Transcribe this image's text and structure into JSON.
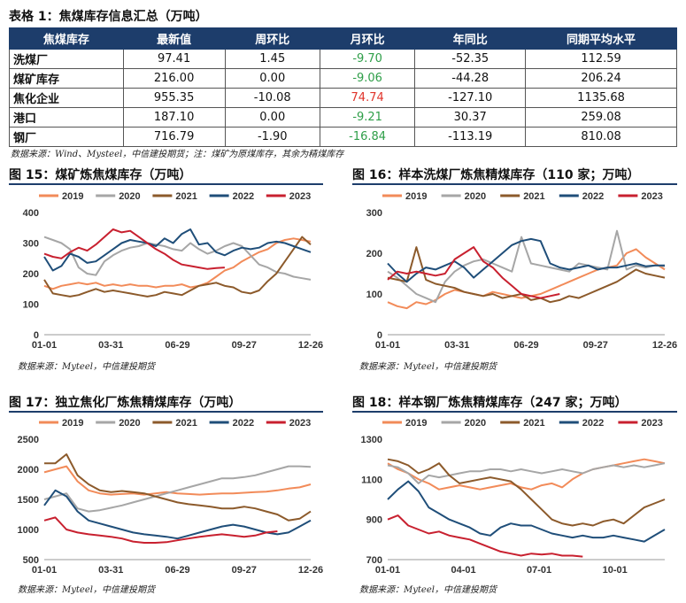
{
  "table": {
    "title": "表格 1：焦煤库存信息汇总（万吨）",
    "headers": [
      "焦煤库存",
      "最新值",
      "周环比",
      "月环比",
      "年同比",
      "同期平均水平"
    ],
    "rows": [
      [
        "洗煤厂",
        "97.41",
        "1.45",
        "-9.70",
        "-52.35",
        "112.59"
      ],
      [
        "煤矿库存",
        "216.00",
        "0.00",
        "-9.06",
        "-44.28",
        "206.24"
      ],
      [
        "焦化企业",
        "955.35",
        "-10.08",
        "74.74",
        "-127.10",
        "1135.68"
      ],
      [
        "港口",
        "187.10",
        "0.00",
        "-9.21",
        "30.37",
        "259.08"
      ],
      [
        "钢厂",
        "716.79",
        "-1.90",
        "-16.84",
        "-113.19",
        "810.08"
      ]
    ],
    "mom_colors": [
      "#2e9e48",
      "#2e9e48",
      "#e0342b",
      "#2e9e48",
      "#2e9e48"
    ],
    "source": "数据来源：Wind、Mysteel，中信建投期货；注：煤矿为原煤库存，其余为精煤库存"
  },
  "chart_source": "数据来源：Myteel，中信建投期货",
  "series_colors": {
    "2019": "#f28b59",
    "2020": "#a6a6a6",
    "2021": "#8c5a2b",
    "2022": "#1f4e79",
    "2023": "#c8202f"
  },
  "chart_data": [
    {
      "type": "line",
      "title": "图 15：煤矿炼焦煤库存（万吨）",
      "legend": [
        "2019",
        "2020",
        "2021",
        "2022",
        "2023"
      ],
      "legend_placement": "top",
      "xticks": [
        "01-01",
        "03-31",
        "06-29",
        "09-27",
        "12-26"
      ],
      "ylim": [
        0,
        400
      ],
      "yticks": [
        0,
        100,
        200,
        300,
        400
      ],
      "series": [
        {
          "name": "2019",
          "values": [
            160,
            150,
            160,
            165,
            170,
            165,
            170,
            160,
            165,
            160,
            165,
            160,
            160,
            155,
            160,
            160,
            165,
            155,
            160,
            170,
            190,
            210,
            220,
            240,
            255,
            270,
            280,
            300,
            310,
            315,
            310,
            305
          ]
        },
        {
          "name": "2020",
          "values": [
            320,
            310,
            300,
            280,
            220,
            200,
            195,
            240,
            260,
            275,
            285,
            290,
            300,
            295,
            290,
            280,
            275,
            300,
            280,
            265,
            275,
            290,
            300,
            290,
            260,
            230,
            220,
            205,
            200,
            190,
            185,
            180
          ]
        },
        {
          "name": "2021",
          "values": [
            180,
            135,
            130,
            125,
            130,
            140,
            150,
            140,
            145,
            140,
            135,
            130,
            125,
            130,
            140,
            135,
            130,
            145,
            160,
            165,
            170,
            160,
            155,
            140,
            135,
            145,
            175,
            200,
            240,
            280,
            320,
            295
          ]
        },
        {
          "name": "2022",
          "values": [
            255,
            210,
            225,
            265,
            255,
            235,
            240,
            260,
            280,
            300,
            310,
            305,
            300,
            290,
            315,
            300,
            330,
            345,
            295,
            300,
            270,
            260,
            275,
            285,
            280,
            285,
            300,
            305,
            300,
            290,
            280,
            270
          ]
        },
        {
          "name": "2023",
          "values": [
            265,
            255,
            250,
            270,
            285,
            275,
            295,
            320,
            345,
            335,
            340,
            320,
            300,
            280,
            265,
            245,
            230,
            225,
            220,
            215,
            218,
            220
          ]
        }
      ]
    },
    {
      "type": "line",
      "title": "图 16：样本洗煤厂炼焦精煤库存（110 家；万吨）",
      "legend": [
        "2019",
        "2020",
        "2021",
        "2022",
        "2023"
      ],
      "legend_placement": "top",
      "xticks": [
        "01-01",
        "03-31",
        "06-29",
        "09-27",
        "12-26"
      ],
      "ylim": [
        0,
        300
      ],
      "yticks": [
        0,
        100,
        200,
        300
      ],
      "series": [
        {
          "name": "2019",
          "values": [
            80,
            70,
            65,
            80,
            75,
            85,
            100,
            110,
            105,
            100,
            95,
            105,
            100,
            95,
            90,
            95,
            100,
            110,
            120,
            130,
            140,
            150,
            160,
            165,
            170,
            200,
            210,
            190,
            175,
            160
          ]
        },
        {
          "name": "2020",
          "values": [
            155,
            140,
            120,
            100,
            90,
            80,
            130,
            155,
            170,
            180,
            185,
            175,
            165,
            155,
            240,
            175,
            170,
            165,
            160,
            155,
            175,
            170,
            165,
            160,
            255,
            160,
            170,
            165,
            170,
            168
          ]
        },
        {
          "name": "2021",
          "values": [
            140,
            135,
            130,
            215,
            135,
            125,
            120,
            115,
            105,
            100,
            95,
            100,
            90,
            95,
            100,
            85,
            90,
            80,
            85,
            95,
            90,
            100,
            110,
            120,
            130,
            145,
            160,
            150,
            145,
            140
          ]
        },
        {
          "name": "2022",
          "values": [
            175,
            150,
            130,
            150,
            165,
            160,
            170,
            180,
            165,
            140,
            160,
            180,
            200,
            220,
            230,
            235,
            230,
            175,
            165,
            160,
            165,
            170,
            160,
            165,
            165,
            170,
            175,
            168,
            170,
            170
          ]
        },
        {
          "name": "2023",
          "values": [
            135,
            155,
            150,
            155,
            150,
            145,
            150,
            185,
            200,
            215,
            180,
            165,
            140,
            120,
            100,
            95,
            90,
            95,
            100
          ]
        }
      ]
    },
    {
      "type": "line",
      "title": "图 17：独立焦化厂炼焦精煤库存（万吨）",
      "legend": [
        "2019",
        "2020",
        "2021",
        "2022",
        "2023"
      ],
      "legend_placement": "top",
      "xticks": [
        "01-01",
        "03-31",
        "06-29",
        "09-27",
        "12-26"
      ],
      "ylim": [
        500,
        2500
      ],
      "yticks": [
        500,
        1000,
        1500,
        2000,
        2500
      ],
      "series": [
        {
          "name": "2019",
          "values": [
            1950,
            2000,
            2050,
            1800,
            1650,
            1600,
            1580,
            1590,
            1600,
            1580,
            1600,
            1620,
            1600,
            1590,
            1580,
            1590,
            1600,
            1600,
            1610,
            1620,
            1630,
            1650,
            1680,
            1700,
            1750
          ]
        },
        {
          "name": "2020",
          "values": [
            1500,
            1550,
            1600,
            1350,
            1300,
            1320,
            1360,
            1400,
            1450,
            1500,
            1550,
            1600,
            1650,
            1700,
            1750,
            1800,
            1850,
            1850,
            1870,
            1900,
            1950,
            2000,
            2050,
            2050,
            2040
          ]
        },
        {
          "name": "2021",
          "values": [
            2100,
            2100,
            2250,
            1900,
            1750,
            1650,
            1620,
            1640,
            1620,
            1600,
            1550,
            1500,
            1450,
            1420,
            1400,
            1380,
            1350,
            1350,
            1380,
            1350,
            1300,
            1250,
            1150,
            1180,
            1300
          ]
        },
        {
          "name": "2022",
          "values": [
            1400,
            1650,
            1550,
            1300,
            1150,
            1100,
            1050,
            1000,
            950,
            920,
            900,
            880,
            850,
            900,
            950,
            1000,
            1050,
            1080,
            1050,
            1000,
            950,
            920,
            950,
            1050,
            1150
          ]
        },
        {
          "name": "2023",
          "values": [
            1150,
            1200,
            1000,
            950,
            920,
            900,
            880,
            850,
            800,
            780,
            780,
            790,
            820,
            850,
            880,
            900,
            920,
            900,
            880,
            900,
            950,
            970
          ]
        }
      ]
    },
    {
      "type": "line",
      "title": "图 18：样本钢厂炼焦精煤库存（247 家；万吨）",
      "legend": [
        "2019",
        "2020",
        "2021",
        "2022",
        "2023"
      ],
      "legend_placement": "top",
      "xticks": [
        "01-01",
        "04-01",
        "07-01",
        "10-01"
      ],
      "ylim": [
        700,
        1300
      ],
      "yticks": [
        700,
        900,
        1100,
        1300
      ],
      "series": [
        {
          "name": "2019",
          "values": [
            1180,
            1150,
            1130,
            1100,
            1080,
            1050,
            1060,
            1070,
            1060,
            1050,
            1060,
            1070,
            1080,
            1060,
            1050,
            1070,
            1080,
            1060,
            1100,
            1130,
            1150,
            1160,
            1170,
            1180,
            1190,
            1200,
            1190,
            1180
          ]
        },
        {
          "name": "2020",
          "values": [
            1170,
            1160,
            1130,
            1080,
            1120,
            1110,
            1120,
            1130,
            1140,
            1140,
            1150,
            1150,
            1140,
            1150,
            1140,
            1130,
            1140,
            1150,
            1140,
            1130,
            1150,
            1160,
            1170,
            1160,
            1170,
            1160,
            1170,
            1180
          ]
        },
        {
          "name": "2021",
          "values": [
            1200,
            1190,
            1170,
            1130,
            1150,
            1180,
            1120,
            1080,
            1090,
            1100,
            1110,
            1100,
            1090,
            1050,
            1000,
            950,
            900,
            880,
            870,
            880,
            870,
            890,
            900,
            880,
            920,
            960,
            980,
            1000
          ]
        },
        {
          "name": "2022",
          "values": [
            1000,
            1050,
            1090,
            1040,
            960,
            930,
            900,
            880,
            860,
            830,
            820,
            860,
            880,
            870,
            870,
            850,
            830,
            820,
            810,
            820,
            810,
            810,
            820,
            810,
            800,
            790,
            820,
            850
          ]
        },
        {
          "name": "2023",
          "values": [
            900,
            920,
            870,
            850,
            830,
            840,
            820,
            810,
            800,
            780,
            760,
            740,
            730,
            720,
            730,
            725,
            730,
            720,
            720,
            715
          ]
        }
      ]
    }
  ]
}
